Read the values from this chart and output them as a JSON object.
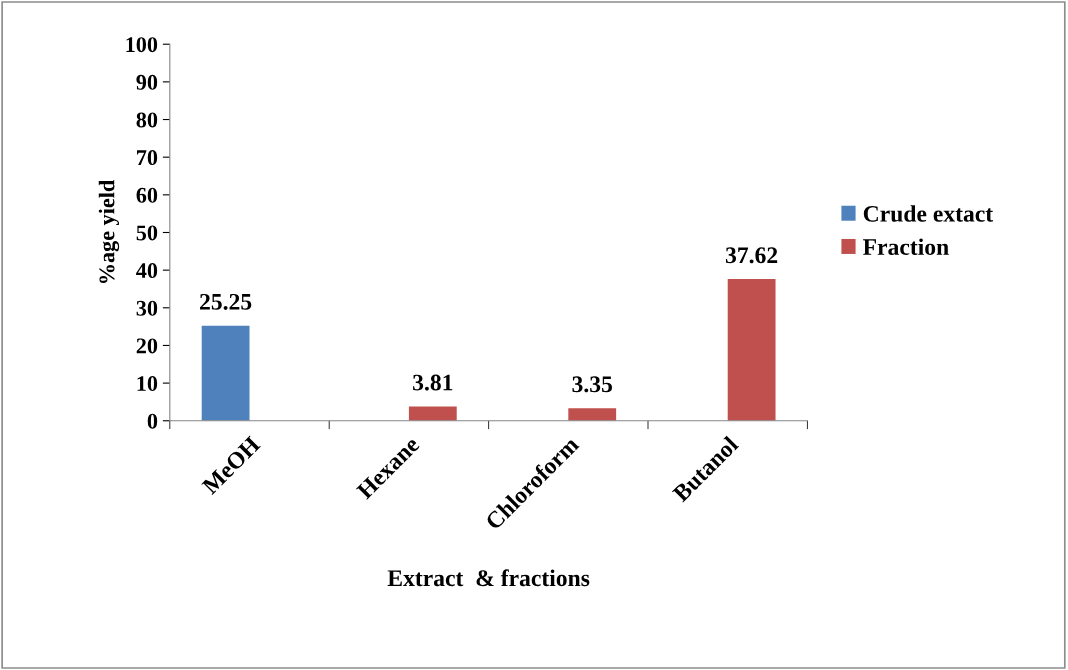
{
  "chart_data": {
    "type": "bar",
    "xlabel": "Extract  & fractions",
    "ylabel": "%age yield",
    "categories": [
      "MeOH",
      "Hexane",
      "Chloroform",
      "Butanol"
    ],
    "series": [
      {
        "name": "Crude extact",
        "color": "#4f81bd",
        "values": [
          25.25,
          null,
          null,
          null
        ]
      },
      {
        "name": "Fraction",
        "color": "#c0504d",
        "values": [
          null,
          3.81,
          3.35,
          37.62
        ]
      }
    ],
    "ylim": [
      0,
      100
    ],
    "yticks": [
      0,
      10,
      20,
      30,
      40,
      50,
      60,
      70,
      80,
      90,
      100
    ],
    "data_labels": true,
    "legend": "right",
    "grid": false
  }
}
